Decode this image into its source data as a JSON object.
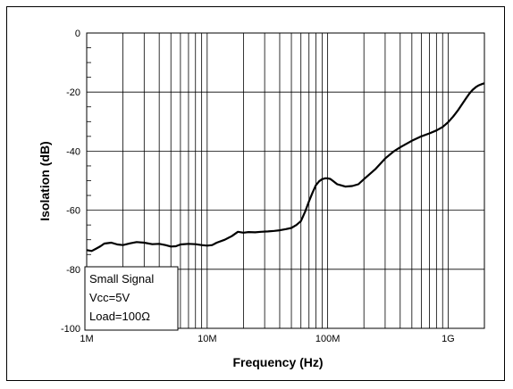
{
  "chart_data": {
    "type": "line",
    "xlabel": "Frequency  (Hz)",
    "ylabel": "Isolation  (dB)",
    "x_scale": "log",
    "xlim": [
      1000000,
      2000000000
    ],
    "ylim": [
      -100,
      0
    ],
    "x_ticks": [
      {
        "value": 1000000,
        "label": "1M"
      },
      {
        "value": 10000000,
        "label": "10M"
      },
      {
        "value": 100000000,
        "label": "100M"
      },
      {
        "value": 1000000000,
        "label": "1G"
      }
    ],
    "y_ticks": [
      {
        "value": 0,
        "label": "0"
      },
      {
        "value": -20,
        "label": "-20"
      },
      {
        "value": -40,
        "label": "-40"
      },
      {
        "value": -60,
        "label": "-60"
      },
      {
        "value": -80,
        "label": "-80"
      },
      {
        "value": -100,
        "label": "-100"
      }
    ],
    "grid": true,
    "annotation_lines": [
      "Small Signal",
      "Vcc=5V",
      "Load=100Ω"
    ],
    "series": [
      {
        "color": "#000000",
        "x": [
          1000000,
          1100000,
          1200000,
          1300000,
          1400000,
          1600000,
          1800000,
          2000000,
          2300000,
          2600000,
          3000000,
          3500000,
          4000000,
          4500000,
          5000000,
          5500000,
          6000000,
          7000000,
          8000000,
          9000000,
          10000000,
          11000000,
          12000000,
          14000000,
          16000000,
          18000000,
          20000000,
          22000000,
          25000000,
          28000000,
          32000000,
          36000000,
          40000000,
          45000000,
          50000000,
          55000000,
          60000000,
          65000000,
          70000000,
          75000000,
          80000000,
          85000000,
          90000000,
          95000000,
          100000000,
          105000000,
          110000000,
          120000000,
          130000000,
          140000000,
          160000000,
          180000000,
          200000000,
          250000000,
          300000000,
          350000000,
          400000000,
          500000000,
          600000000,
          700000000,
          800000000,
          900000000,
          1000000000,
          1100000000,
          1200000000,
          1300000000,
          1400000000,
          1500000000,
          1600000000,
          1700000000,
          1800000000,
          1900000000,
          2000000000
        ],
        "y": [
          -73.5,
          -73.8,
          -73,
          -72.2,
          -71.3,
          -71,
          -71.6,
          -71.8,
          -71.2,
          -70.8,
          -71,
          -71.5,
          -71.4,
          -71.8,
          -72.3,
          -72.2,
          -71.6,
          -71.4,
          -71.5,
          -71.8,
          -72,
          -71.8,
          -71,
          -70,
          -68.8,
          -67.3,
          -67.6,
          -67.4,
          -67.5,
          -67.3,
          -67.2,
          -67,
          -66.8,
          -66.4,
          -66,
          -65,
          -63.7,
          -60.5,
          -57,
          -54,
          -51.5,
          -50.2,
          -49.5,
          -49.2,
          -49.2,
          -49.4,
          -50,
          -51.2,
          -51.6,
          -52,
          -51.8,
          -51.2,
          -49.5,
          -46,
          -42.5,
          -40.2,
          -38.7,
          -36.5,
          -35,
          -34,
          -33,
          -31.8,
          -30.2,
          -28.3,
          -26.3,
          -24.2,
          -22.3,
          -20.5,
          -19.2,
          -18.3,
          -17.7,
          -17.3,
          -17
        ]
      }
    ]
  }
}
